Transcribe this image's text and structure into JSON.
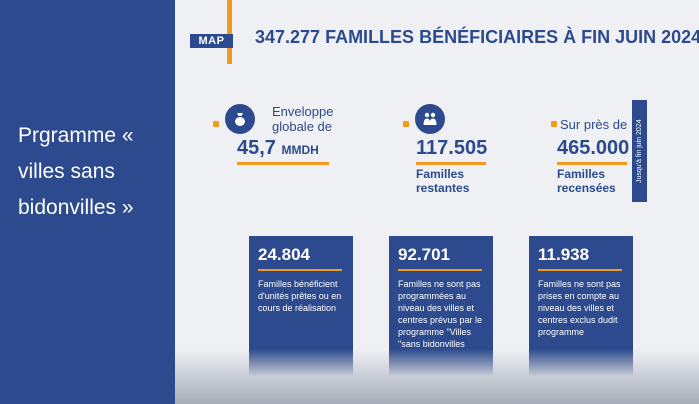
{
  "left_panel": {
    "title": "Prgramme « villes sans bidonvilles »"
  },
  "header": {
    "badge": "MAP",
    "headline": "347.277 FAMILLES BÉNÉFICIAIRES À FIN JUIN 2024"
  },
  "stats": [
    {
      "label_line1": "Enveloppe",
      "label_line2": "globale de",
      "value": "45,7",
      "unit": "MMDH"
    },
    {
      "value": "117.505",
      "caption_line1": "Familles",
      "caption_line2": "restantes"
    },
    {
      "label": "Sur près de",
      "value": "465.000",
      "caption_line1": "Familles",
      "caption_line2": "recensées"
    }
  ],
  "vertical_tag": "Jusqu'à fin juin 2024",
  "cards": [
    {
      "number": "24.804",
      "text": "Familles bénéficient d'unités prêtes ou en cours de réalisation"
    },
    {
      "number": "92.701",
      "text": "Familles ne sont pas programmées au niveau des villes et centres prévus par le programme \"Villes \"sans bidonvilles"
    },
    {
      "number": "11.938",
      "text": "Familles ne sont pas prises en compte au niveau des villes et centres exclus dudit programme"
    }
  ],
  "colors": {
    "brand_blue": "#2c4a8d",
    "accent_orange": "#f39a1e",
    "background": "#eef0f3"
  }
}
